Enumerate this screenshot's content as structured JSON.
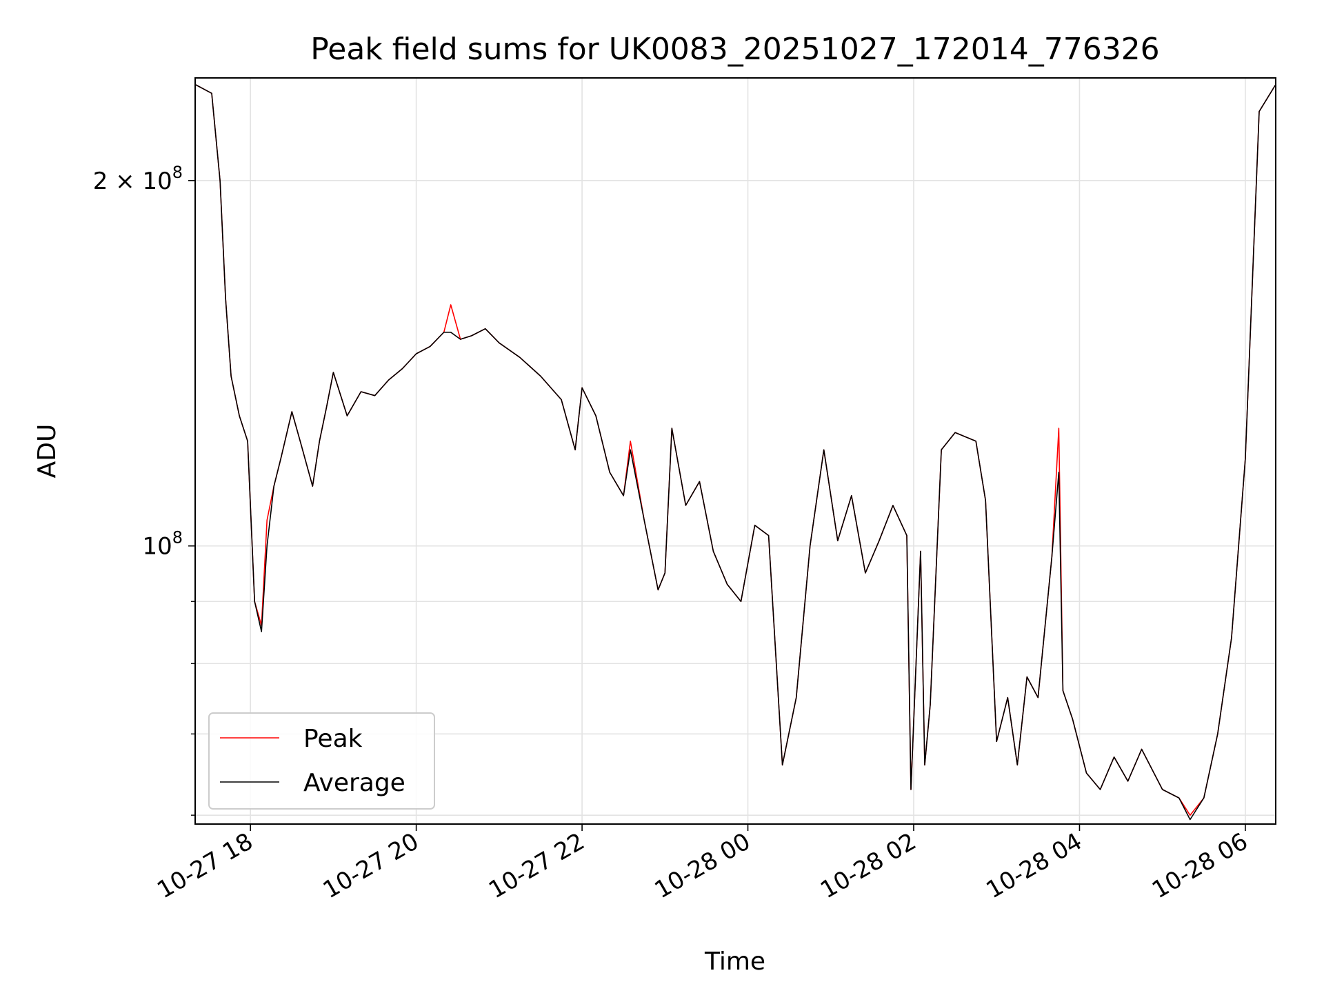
{
  "chart_data": {
    "type": "line",
    "title": "Peak field sums for UK0083_20251027_172014_776326",
    "xlabel": "Time",
    "ylabel": "ADU",
    "y_scale": "log",
    "grid": true,
    "legend_position": "lower-left",
    "xlim": [
      "2025-10-27 17:20",
      "2025-10-28 06:22"
    ],
    "ylim": [
      59000000,
      243000000
    ],
    "x_tick_labels": [
      "10-27 18",
      "10-27 20",
      "10-27 22",
      "10-28 00",
      "10-28 02",
      "10-28 04",
      "10-28 06"
    ],
    "x_ticks": [
      "2025-10-27 18:00",
      "2025-10-27 20:00",
      "2025-10-27 22:00",
      "2025-10-28 00:00",
      "2025-10-28 02:00",
      "2025-10-28 04:00",
      "2025-10-28 06:00"
    ],
    "y_tick_labels": [
      {
        "value": 200000000,
        "mantissa": "2",
        "exponent": "8"
      },
      {
        "value": 100000000,
        "mantissa": "",
        "exponent": "8"
      }
    ],
    "y_minor_ticks": [
      60000000,
      70000000,
      80000000,
      90000000
    ],
    "x": [
      "2025-10-27 17:20",
      "2025-10-27 17:32",
      "2025-10-27 17:38",
      "2025-10-27 17:42",
      "2025-10-27 17:46",
      "2025-10-27 17:52",
      "2025-10-27 17:58",
      "2025-10-27 18:03",
      "2025-10-27 18:08",
      "2025-10-27 18:12",
      "2025-10-27 18:17",
      "2025-10-27 18:22",
      "2025-10-27 18:30",
      "2025-10-27 18:36",
      "2025-10-27 18:45",
      "2025-10-27 18:50",
      "2025-10-27 18:55",
      "2025-10-27 19:00",
      "2025-10-27 19:10",
      "2025-10-27 19:20",
      "2025-10-27 19:30",
      "2025-10-27 19:40",
      "2025-10-27 19:50",
      "2025-10-27 20:00",
      "2025-10-27 20:10",
      "2025-10-27 20:20",
      "2025-10-27 20:25",
      "2025-10-27 20:32",
      "2025-10-27 20:40",
      "2025-10-27 20:50",
      "2025-10-27 21:00",
      "2025-10-27 21:15",
      "2025-10-27 21:30",
      "2025-10-27 21:45",
      "2025-10-27 21:55",
      "2025-10-27 22:00",
      "2025-10-27 22:10",
      "2025-10-27 22:20",
      "2025-10-27 22:30",
      "2025-10-27 22:35",
      "2025-10-27 22:45",
      "2025-10-27 22:55",
      "2025-10-27 23:00",
      "2025-10-27 23:05",
      "2025-10-27 23:15",
      "2025-10-27 23:25",
      "2025-10-27 23:35",
      "2025-10-27 23:45",
      "2025-10-27 23:55",
      "2025-10-28 00:05",
      "2025-10-28 00:15",
      "2025-10-28 00:25",
      "2025-10-28 00:35",
      "2025-10-28 00:45",
      "2025-10-28 00:55",
      "2025-10-28 01:05",
      "2025-10-28 01:15",
      "2025-10-28 01:25",
      "2025-10-28 01:35",
      "2025-10-28 01:45",
      "2025-10-28 01:55",
      "2025-10-28 01:58",
      "2025-10-28 02:05",
      "2025-10-28 02:08",
      "2025-10-28 02:12",
      "2025-10-28 02:20",
      "2025-10-28 02:30",
      "2025-10-28 02:45",
      "2025-10-28 02:52",
      "2025-10-28 03:00",
      "2025-10-28 03:08",
      "2025-10-28 03:15",
      "2025-10-28 03:22",
      "2025-10-28 03:30",
      "2025-10-28 03:40",
      "2025-10-28 03:45",
      "2025-10-28 03:48",
      "2025-10-28 03:55",
      "2025-10-28 04:05",
      "2025-10-28 04:15",
      "2025-10-28 04:25",
      "2025-10-28 04:35",
      "2025-10-28 04:45",
      "2025-10-28 05:00",
      "2025-10-28 05:12",
      "2025-10-28 05:20",
      "2025-10-28 05:30",
      "2025-10-28 05:40",
      "2025-10-28 05:50",
      "2025-10-28 06:00",
      "2025-10-28 06:10",
      "2025-10-28 06:22"
    ],
    "series": [
      {
        "name": "Peak",
        "color": "#ff0000",
        "values": [
          240000000,
          236000000,
          200000000,
          160000000,
          138000000,
          128000000,
          122000000,
          90000000,
          86000000,
          105000000,
          112000000,
          118000000,
          129000000,
          122000000,
          112000000,
          122000000,
          130000000,
          139000000,
          128000000,
          134000000,
          133000000,
          137000000,
          140000000,
          144000000,
          146000000,
          150000000,
          158000000,
          148000000,
          149000000,
          151000000,
          147000000,
          143000000,
          138000000,
          132000000,
          120000000,
          135000000,
          128000000,
          115000000,
          110000000,
          122000000,
          105000000,
          92000000,
          95000000,
          125000000,
          108000000,
          113000000,
          99000000,
          93000000,
          90000000,
          104000000,
          102000000,
          66000000,
          75000000,
          100000000,
          120000000,
          101000000,
          110000000,
          95000000,
          101000000,
          108000000,
          102000000,
          63000000,
          99000000,
          66000000,
          74000000,
          120000000,
          124000000,
          122000000,
          109000000,
          69000000,
          75000000,
          66000000,
          78000000,
          75000000,
          98000000,
          125000000,
          76000000,
          72000000,
          65000000,
          63000000,
          67000000,
          64000000,
          68000000,
          63000000,
          62000000,
          60000000,
          62000000,
          70000000,
          84000000,
          118000000,
          228000000,
          240000000
        ]
      },
      {
        "name": "Average",
        "color": "#000000",
        "values": [
          240000000,
          236000000,
          200000000,
          160000000,
          138000000,
          128000000,
          122000000,
          90000000,
          85000000,
          100000000,
          112000000,
          118000000,
          129000000,
          122000000,
          112000000,
          122000000,
          130000000,
          139000000,
          128000000,
          134000000,
          133000000,
          137000000,
          140000000,
          144000000,
          146000000,
          150000000,
          150000000,
          148000000,
          149000000,
          151000000,
          147000000,
          143000000,
          138000000,
          132000000,
          120000000,
          135000000,
          128000000,
          115000000,
          110000000,
          120000000,
          105000000,
          92000000,
          95000000,
          125000000,
          108000000,
          113000000,
          99000000,
          93000000,
          90000000,
          104000000,
          102000000,
          66000000,
          75000000,
          100000000,
          120000000,
          101000000,
          110000000,
          95000000,
          101000000,
          108000000,
          102000000,
          63000000,
          99000000,
          66000000,
          74000000,
          120000000,
          124000000,
          122000000,
          109000000,
          69000000,
          75000000,
          66000000,
          78000000,
          75000000,
          98000000,
          115000000,
          76000000,
          72000000,
          65000000,
          63000000,
          67000000,
          64000000,
          68000000,
          63000000,
          62000000,
          59500000,
          62000000,
          70000000,
          84000000,
          118000000,
          228000000,
          240000000
        ]
      }
    ]
  }
}
